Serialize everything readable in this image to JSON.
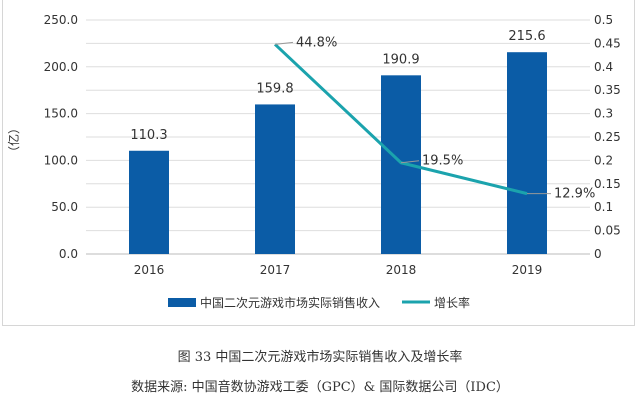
{
  "chart_data": {
    "type": "bar+line",
    "categories": [
      "2016",
      "2017",
      "2018",
      "2019"
    ],
    "series": [
      {
        "name": "中国二次元游戏市场实际销售收入",
        "type": "bar",
        "axis": "left",
        "values": [
          110.3,
          159.8,
          190.9,
          215.6
        ],
        "labels": [
          "110.3",
          "159.8",
          "190.9",
          "215.6"
        ],
        "color": "#0b5ca6"
      },
      {
        "name": "增长率",
        "type": "line",
        "axis": "right",
        "values": [
          null,
          0.448,
          0.195,
          0.129
        ],
        "labels": [
          "",
          "44.8%",
          "19.5%",
          "12.9%"
        ],
        "color": "#1ba3ad"
      }
    ],
    "ylabel": "（亿）",
    "ylim": [
      0,
      250
    ],
    "yticks": [
      "0.0",
      "50.0",
      "100.0",
      "150.0",
      "200.0",
      "250.0"
    ],
    "y2lim": [
      0,
      0.5
    ],
    "y2ticks": [
      "0",
      "0.05",
      "0.1",
      "0.15",
      "0.2",
      "0.25",
      "0.3",
      "0.35",
      "0.4",
      "0.45",
      "0.5"
    ],
    "grid": true,
    "legend": "bottom"
  },
  "caption": "图 33  中国二次元游戏市场实际销售收入及增长率",
  "source": "数据来源: 中国音数协游戏工委（GPC）& 国际数据公司（IDC）"
}
